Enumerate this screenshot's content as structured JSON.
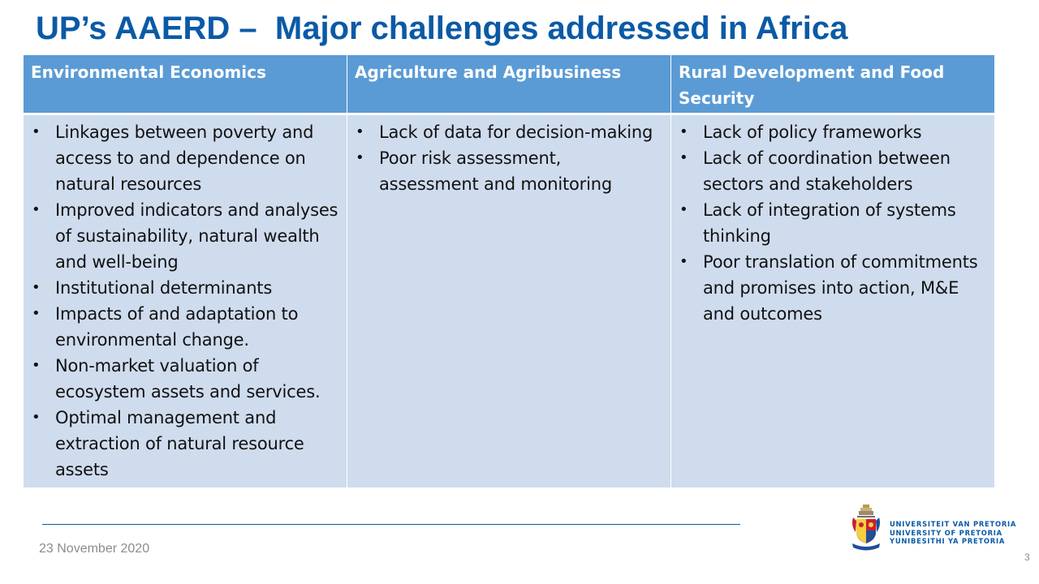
{
  "title": "UP’s AAERD –  Major challenges addressed in Africa",
  "columns": [
    {
      "header": "Environmental Economics",
      "items": [
        "Linkages between poverty and access to and dependence on natural resources",
        "Improved indicators and analyses of sustainability, natural wealth and well-being",
        "Institutional determinants",
        "Impacts of and adaptation to environmental change.",
        "Non-market valuation of ecosystem assets and services.",
        "Optimal management and extraction of natural resource assets"
      ]
    },
    {
      "header": "Agriculture and Agribusiness",
      "items": [
        "Lack of data for decision-making",
        "Poor risk assessment, assessment and monitoring"
      ]
    },
    {
      "header": "Rural Development and Food Security",
      "items": [
        "Lack of policy frameworks",
        "Lack of coordination between sectors and stakeholders",
        "Lack of integration of systems thinking",
        "Poor translation of commitments and promises into action, M&E  and outcomes"
      ]
    }
  ],
  "footer": {
    "date": "23 November 2020",
    "page_number": "3",
    "logo_lines": [
      "UNIVERSITEIT VAN PRETORIA",
      "UNIVERSITY OF PRETORIA",
      "YUNIBESITHI YA PRETORIA"
    ]
  },
  "colors": {
    "title": "#0a5aa6",
    "header_bg": "#5b9bd5",
    "body_bg": "#cfdcee",
    "logo_text": "#0a5aa6"
  }
}
